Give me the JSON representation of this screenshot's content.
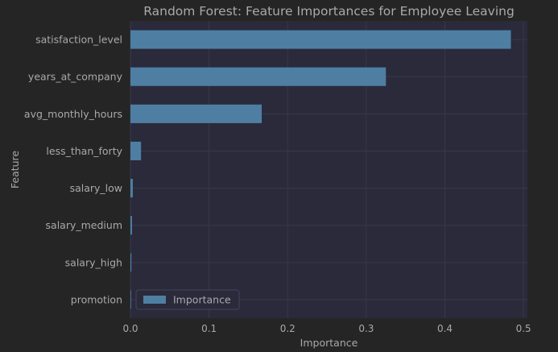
{
  "chart_data": {
    "type": "bar",
    "orientation": "horizontal",
    "title": "Random Forest: Feature Importances for Employee Leaving",
    "xlabel": "Importance",
    "ylabel": "Feature",
    "categories": [
      "satisfaction_level",
      "years_at_company",
      "avg_monthly_hours",
      "less_than_forty",
      "salary_low",
      "salary_medium",
      "salary_high",
      "promotion"
    ],
    "series": [
      {
        "name": "Importance",
        "values": [
          0.484,
          0.325,
          0.167,
          0.0135,
          0.003,
          0.002,
          0.0012,
          0.0005
        ]
      }
    ],
    "xlim": [
      0,
      0.505
    ],
    "xticks": [
      "0.0",
      "0.1",
      "0.2",
      "0.3",
      "0.4",
      "0.5"
    ],
    "grid": true,
    "legend": "lower-left",
    "colors": {
      "bar": "#4f7ea3",
      "background": "#252525",
      "plot_background": "#2a2a3b",
      "grid": "#38384b",
      "text": "#a9a9ae"
    }
  }
}
